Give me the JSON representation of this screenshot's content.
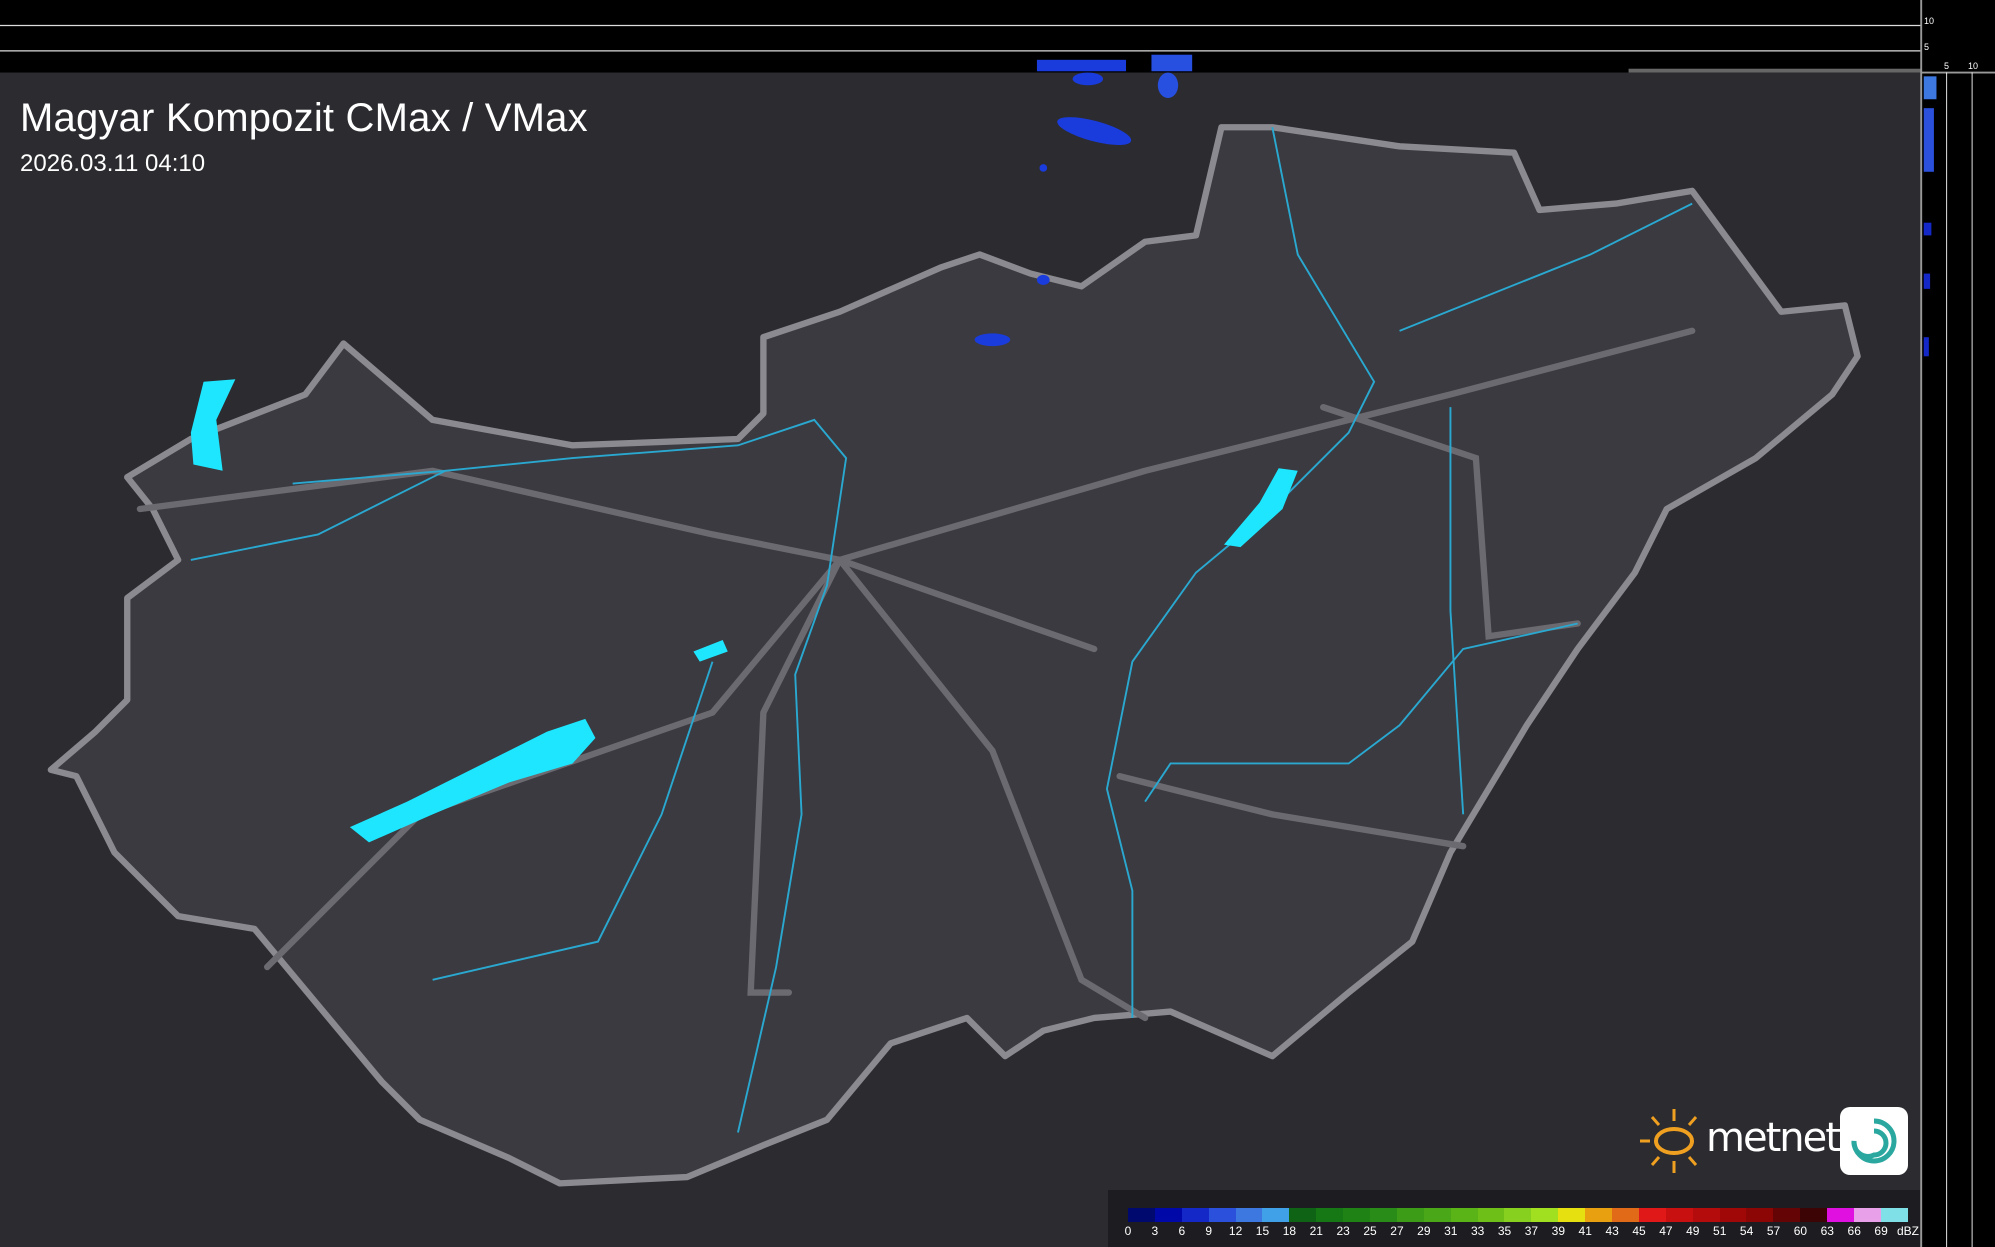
{
  "header": {
    "title": "Magyar Kompozit CMax / VMax",
    "timestamp": "2026.03.11 04:10"
  },
  "side_profiles": {
    "top_axis_ticks": [
      "10",
      "5"
    ],
    "right_axis_ticks": [
      "5",
      "10"
    ]
  },
  "legend": {
    "unit": "dBZ",
    "ticks": [
      "0",
      "3",
      "6",
      "9",
      "12",
      "15",
      "18",
      "21",
      "23",
      "25",
      "27",
      "29",
      "31",
      "33",
      "35",
      "37",
      "39",
      "41",
      "43",
      "45",
      "47",
      "49",
      "51",
      "54",
      "57",
      "60",
      "63",
      "66",
      "69"
    ],
    "colors": [
      "#000a6e",
      "#0008a8",
      "#1428c8",
      "#2a50dc",
      "#3c78e0",
      "#40a0e8",
      "#0e6414",
      "#157814",
      "#1e8214",
      "#2a8c18",
      "#3c9c18",
      "#4aa818",
      "#5ab418",
      "#6ec018",
      "#88d020",
      "#a0e020",
      "#e6e010",
      "#e8a010",
      "#e06a18",
      "#e01818",
      "#c81010",
      "#b40c0c",
      "#a00808",
      "#8c0606",
      "#640404",
      "#3c0404",
      "#e010e0",
      "#e8a0e8",
      "#80e0e8"
    ]
  },
  "logo": {
    "text": "metnet"
  },
  "colors": {
    "background": "#2a2a2f",
    "border": "#8a8a8f",
    "water": "#1ee6ff",
    "river": "#2aa8d0",
    "echo": "#1a3cdc"
  }
}
